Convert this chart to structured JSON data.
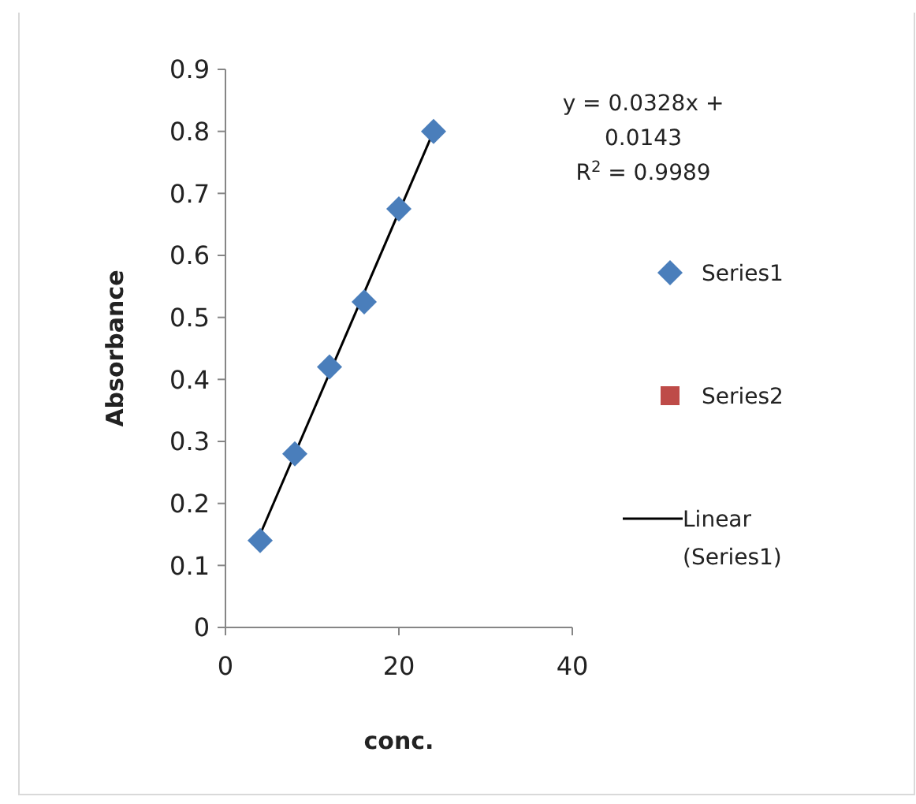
{
  "chart_data": {
    "type": "scatter",
    "xlabel": "conc.",
    "ylabel": "Absorbance",
    "xlim": [
      0,
      40
    ],
    "xticks": [
      0,
      20,
      40
    ],
    "ylim": [
      0,
      0.9
    ],
    "yticks": [
      0,
      0.1,
      0.2,
      0.3,
      0.4,
      0.5,
      0.6,
      0.7,
      0.8,
      0.9
    ],
    "legend": "right",
    "series": [
      {
        "name": "Series1",
        "color": "#4a7ebb",
        "marker": "diamond",
        "x": [
          4,
          8,
          12,
          16,
          20,
          24
        ],
        "values": [
          0.14,
          0.28,
          0.42,
          0.525,
          0.675,
          0.8
        ]
      },
      {
        "name": "Series2",
        "color": "#be4b48",
        "marker": "square"
      },
      {
        "name": "Linear (Series1)",
        "color": "#000000",
        "type": "line",
        "line_style": "solid",
        "x": [
          4,
          24
        ],
        "values": [
          0.15,
          0.8
        ]
      }
    ],
    "annotations": [
      "y = 0.0328x + 0.0143",
      "R$^{2}$ = 0.9989"
    ]
  }
}
